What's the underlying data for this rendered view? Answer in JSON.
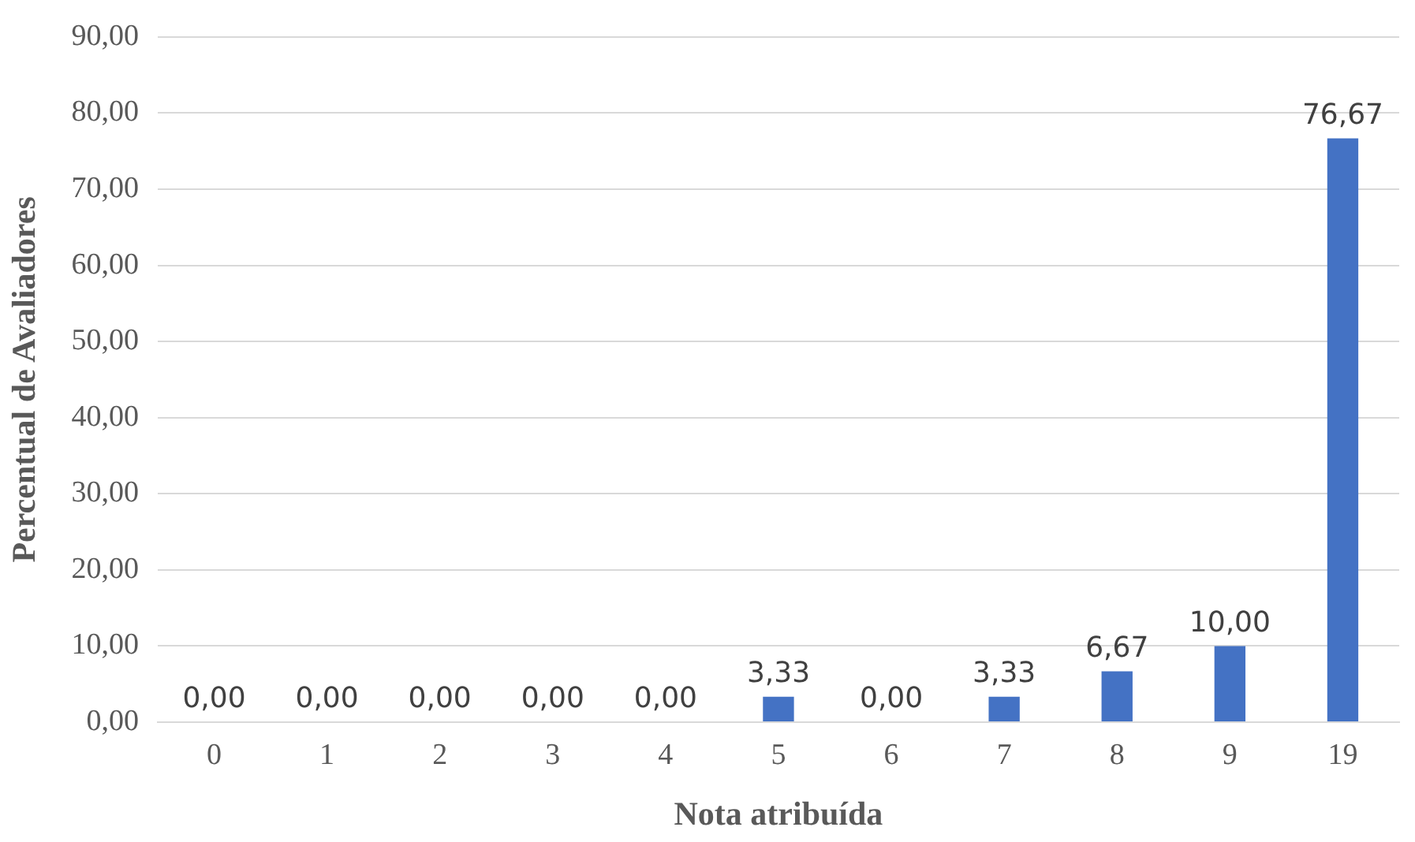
{
  "chart_data": {
    "type": "bar",
    "xlabel": "Nota atribuída",
    "ylabel": "Percentual de Avaliadores",
    "categories": [
      "0",
      "1",
      "2",
      "3",
      "4",
      "5",
      "6",
      "7",
      "8",
      "9",
      "19"
    ],
    "values": [
      0,
      0,
      0,
      0,
      0,
      3.33,
      0,
      3.33,
      6.67,
      10,
      76.67
    ],
    "value_labels": [
      "0,00",
      "0,00",
      "0,00",
      "0,00",
      "0,00",
      "3,33",
      "0,00",
      "3,33",
      "6,67",
      "10,00",
      "76,67"
    ],
    "color": "#4472c4",
    "ylim": [
      0,
      90
    ],
    "yticks": [
      {
        "value": 0,
        "label": "0,00"
      },
      {
        "value": 10,
        "label": "10,00"
      },
      {
        "value": 20,
        "label": "20,00"
      },
      {
        "value": 30,
        "label": "30,00"
      },
      {
        "value": 40,
        "label": "40,00"
      },
      {
        "value": 50,
        "label": "50,00"
      },
      {
        "value": 60,
        "label": "60,00"
      },
      {
        "value": 70,
        "label": "70,00"
      },
      {
        "value": 80,
        "label": "80,00"
      },
      {
        "value": 90,
        "label": "90,00"
      }
    ],
    "grid": "y",
    "legend": false
  }
}
